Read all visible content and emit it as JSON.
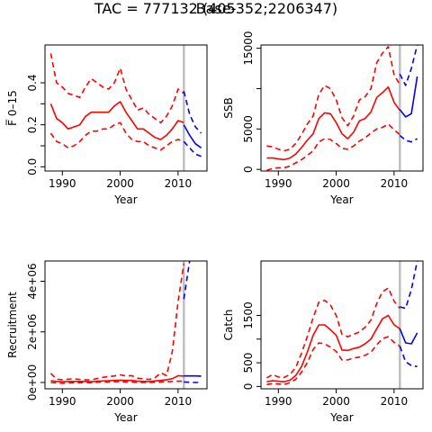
{
  "figure": {
    "title": "Base-",
    "subtitle": "TAC = 777132 (405352;2206347)"
  },
  "chart_data": [
    {
      "type": "line",
      "ylabel": "F̅ 0–15",
      "xlabel": "Year",
      "xlim": [
        1987,
        2015
      ],
      "ylim": [
        -0.02,
        0.58
      ],
      "xticks": [
        1990,
        2000,
        2010
      ],
      "yticks": [
        0.0,
        0.1,
        0.2,
        0.3,
        0.4
      ],
      "yticklabels": [
        "0.0",
        "",
        "0.2",
        "",
        "0.4"
      ],
      "vline": 2011,
      "series": [
        {
          "color": "#ff0000",
          "dash": false,
          "x": [
            1988,
            1989,
            1990,
            1991,
            1992,
            1993,
            1994,
            1995,
            1996,
            1997,
            1998,
            1999,
            2000,
            2001,
            2002,
            2003,
            2004,
            2005,
            2006,
            2007,
            2008,
            2009,
            2010,
            2011
          ],
          "y": [
            0.3,
            0.23,
            0.21,
            0.18,
            0.19,
            0.2,
            0.24,
            0.26,
            0.26,
            0.26,
            0.26,
            0.29,
            0.31,
            0.26,
            0.22,
            0.18,
            0.18,
            0.16,
            0.14,
            0.13,
            0.15,
            0.18,
            0.22,
            0.21
          ]
        },
        {
          "color": "#ff0000",
          "dash": true,
          "x": [
            1988,
            1989,
            1990,
            1991,
            1992,
            1993,
            1994,
            1995,
            1996,
            1997,
            1998,
            1999,
            2000,
            2001,
            2002,
            2003,
            2004,
            2005,
            2006,
            2007,
            2008,
            2009,
            2010,
            2011
          ],
          "y": [
            0.54,
            0.4,
            0.38,
            0.35,
            0.34,
            0.33,
            0.38,
            0.42,
            0.4,
            0.38,
            0.37,
            0.4,
            0.47,
            0.37,
            0.32,
            0.27,
            0.28,
            0.25,
            0.23,
            0.21,
            0.24,
            0.29,
            0.37,
            0.35
          ]
        },
        {
          "color": "#ff0000",
          "dash": true,
          "x": [
            1988,
            1989,
            1990,
            1991,
            1992,
            1993,
            1994,
            1995,
            1996,
            1997,
            1998,
            1999,
            2000,
            2001,
            2002,
            2003,
            2004,
            2005,
            2006,
            2007,
            2008,
            2009,
            2010,
            2011
          ],
          "y": [
            0.16,
            0.12,
            0.11,
            0.09,
            0.1,
            0.12,
            0.15,
            0.17,
            0.17,
            0.18,
            0.18,
            0.2,
            0.21,
            0.16,
            0.13,
            0.12,
            0.12,
            0.1,
            0.09,
            0.08,
            0.1,
            0.12,
            0.13,
            0.12
          ]
        },
        {
          "color": "#0000ff",
          "dash": false,
          "x": [
            2011,
            2012,
            2013,
            2014
          ],
          "y": [
            0.2,
            0.15,
            0.11,
            0.09
          ]
        },
        {
          "color": "#0000ff",
          "dash": true,
          "x": [
            2011,
            2012,
            2013,
            2014
          ],
          "y": [
            0.36,
            0.25,
            0.19,
            0.16
          ]
        },
        {
          "color": "#0000ff",
          "dash": true,
          "x": [
            2011,
            2012,
            2013,
            2014
          ],
          "y": [
            0.12,
            0.09,
            0.06,
            0.05
          ]
        }
      ]
    },
    {
      "type": "line",
      "ylabel": "SSB",
      "xlabel": "Year",
      "xlim": [
        1987,
        2015
      ],
      "ylim": [
        -200,
        15400
      ],
      "xticks": [
        1990,
        2000,
        2010
      ],
      "yticks": [
        0,
        5000,
        10000,
        15000
      ],
      "yticklabels": [
        "0",
        "5000",
        "",
        "15000"
      ],
      "vline": 2011,
      "series": [
        {
          "color": "#ff0000",
          "dash": false,
          "x": [
            1988,
            1989,
            1990,
            1991,
            1992,
            1993,
            1994,
            1995,
            1996,
            1997,
            1998,
            1999,
            2000,
            2001,
            2002,
            2003,
            2004,
            2005,
            2006,
            2007,
            2008,
            2009,
            2010,
            2011
          ],
          "y": [
            1400,
            1400,
            1300,
            1200,
            1400,
            1900,
            2700,
            3600,
            4400,
            6300,
            7000,
            6900,
            5800,
            4400,
            3800,
            4600,
            6000,
            6300,
            7100,
            8900,
            9500,
            10200,
            8300,
            7300
          ]
        },
        {
          "color": "#ff0000",
          "dash": true,
          "x": [
            1988,
            1989,
            1990,
            1991,
            1992,
            1993,
            1994,
            1995,
            1996,
            1997,
            1998,
            1999,
            2000,
            2001,
            2002,
            2003,
            2004,
            2005,
            2006,
            2007,
            2008,
            2009,
            2010,
            2011
          ],
          "y": [
            2900,
            2800,
            2500,
            2300,
            2500,
            3200,
            4300,
            5600,
            6600,
            9300,
            10400,
            10000,
            8600,
            6400,
            5400,
            6600,
            8600,
            9000,
            10000,
            13200,
            14400,
            15200,
            11700,
            10500
          ]
        },
        {
          "color": "#ff0000",
          "dash": true,
          "x": [
            1988,
            1989,
            1990,
            1991,
            1992,
            1993,
            1994,
            1995,
            1996,
            1997,
            1998,
            1999,
            2000,
            2001,
            2002,
            2003,
            2004,
            2005,
            2006,
            2007,
            2008,
            2009,
            2010,
            2011
          ],
          "y": [
            -100,
            100,
            200,
            200,
            400,
            800,
            1200,
            1700,
            2300,
            3400,
            3800,
            3700,
            3200,
            2600,
            2500,
            2900,
            3500,
            3900,
            4500,
            5000,
            5200,
            5600,
            4900,
            4300
          ]
        },
        {
          "color": "#0000ff",
          "dash": false,
          "x": [
            2011,
            2012,
            2013,
            2014
          ],
          "y": [
            7400,
            6500,
            6900,
            11500
          ]
        },
        {
          "color": "#0000ff",
          "dash": true,
          "x": [
            2011,
            2012,
            2013,
            2014
          ],
          "y": [
            11800,
            10400,
            12500,
            15400
          ]
        },
        {
          "color": "#0000ff",
          "dash": true,
          "x": [
            2011,
            2012,
            2013,
            2014
          ],
          "y": [
            4200,
            3600,
            3400,
            3800
          ]
        }
      ]
    },
    {
      "type": "line",
      "ylabel": "Recruitment",
      "xlabel": "Year",
      "xlim": [
        1987,
        2015
      ],
      "ylim": [
        -250000,
        4800000
      ],
      "xticks": [
        1990,
        2000,
        2010
      ],
      "yticks": [
        0,
        2000000,
        4000000
      ],
      "yticklabels": [
        "0e+00",
        "2e+06",
        "4e+06"
      ],
      "vline": 2011,
      "series": [
        {
          "color": "#ff0000",
          "dash": false,
          "x": [
            1988,
            1989,
            1990,
            1991,
            1992,
            1993,
            1994,
            1995,
            1996,
            1997,
            1998,
            1999,
            2000,
            2001,
            2002,
            2003,
            2004,
            2005,
            2006,
            2007,
            2008,
            2009,
            2010,
            2011
          ],
          "y": [
            70000,
            40000,
            30000,
            40000,
            40000,
            40000,
            40000,
            30000,
            50000,
            60000,
            70000,
            80000,
            90000,
            80000,
            80000,
            50000,
            40000,
            40000,
            60000,
            80000,
            110000,
            150000,
            270000,
            250000
          ]
        },
        {
          "color": "#ff0000",
          "dash": true,
          "x": [
            1988,
            1989,
            1990,
            1991,
            1992,
            1993,
            1994,
            1995,
            1996,
            1997,
            1998,
            1999,
            2000,
            2001,
            2002,
            2003,
            2004,
            2005,
            2006,
            2007,
            2008,
            2009,
            2010,
            2011
          ],
          "y": [
            360000,
            130000,
            110000,
            130000,
            140000,
            120000,
            110000,
            100000,
            160000,
            200000,
            230000,
            260000,
            300000,
            260000,
            270000,
            170000,
            140000,
            120000,
            180000,
            380000,
            270000,
            1200000,
            3200000,
            4700000
          ]
        },
        {
          "color": "#ff0000",
          "dash": true,
          "x": [
            1988,
            1989,
            1990,
            1991,
            1992,
            1993,
            1994,
            1995,
            1996,
            1997,
            1998,
            1999,
            2000,
            2001,
            2002,
            2003,
            2004,
            2005,
            2006,
            2007,
            2008,
            2009,
            2010,
            2011
          ],
          "y": [
            0,
            -20000,
            -30000,
            -20000,
            -10000,
            -10000,
            0,
            -10000,
            10000,
            20000,
            20000,
            30000,
            30000,
            20000,
            20000,
            0,
            0,
            0,
            10000,
            20000,
            30000,
            40000,
            50000,
            50000
          ]
        },
        {
          "color": "#0000ff",
          "dash": false,
          "x": [
            2011,
            2012,
            2013,
            2014
          ],
          "y": [
            260000,
            260000,
            260000,
            250000
          ]
        },
        {
          "color": "#0000ff",
          "dash": true,
          "x": [
            2011,
            2012
          ],
          "y": [
            3300000,
            4800000
          ]
        },
        {
          "color": "#0000ff",
          "dash": true,
          "x": [
            2011,
            2012,
            2013,
            2014
          ],
          "y": [
            20000,
            10000,
            0,
            0
          ]
        }
      ]
    },
    {
      "type": "line",
      "ylabel": "Catch",
      "xlabel": "Year",
      "xlim": [
        1987,
        2015
      ],
      "ylim": [
        -50,
        2650
      ],
      "xticks": [
        1990,
        2000,
        2010
      ],
      "yticks": [
        0,
        500,
        1000,
        1500
      ],
      "yticklabels": [
        "0",
        "500",
        "",
        "1500"
      ],
      "vline": 2011,
      "series": [
        {
          "color": "#ff0000",
          "dash": false,
          "x": [
            1988,
            1989,
            1990,
            1991,
            1992,
            1993,
            1994,
            1995,
            1996,
            1997,
            1998,
            1999,
            2000,
            2001,
            2002,
            2003,
            2004,
            2005,
            2006,
            2007,
            2008,
            2009,
            2010,
            2011
          ],
          "y": [
            100,
            120,
            110,
            100,
            130,
            230,
            420,
            720,
            1080,
            1300,
            1300,
            1200,
            1080,
            770,
            760,
            800,
            830,
            900,
            1000,
            1220,
            1430,
            1500,
            1300,
            1220
          ]
        },
        {
          "color": "#ff0000",
          "dash": true,
          "x": [
            1988,
            1989,
            1990,
            1991,
            1992,
            1993,
            1994,
            1995,
            1996,
            1997,
            1998,
            1999,
            2000,
            2001,
            2002,
            2003,
            2004,
            2005,
            2006,
            2007,
            2008,
            2009,
            2010,
            2011
          ],
          "y": [
            180,
            250,
            200,
            190,
            250,
            400,
            700,
            1050,
            1450,
            1780,
            1820,
            1720,
            1500,
            1100,
            1050,
            1100,
            1150,
            1250,
            1400,
            1750,
            2000,
            2080,
            1800,
            1650
          ]
        },
        {
          "color": "#ff0000",
          "dash": true,
          "x": [
            1988,
            1989,
            1990,
            1991,
            1992,
            1993,
            1994,
            1995,
            1996,
            1997,
            1998,
            1999,
            2000,
            2001,
            2002,
            2003,
            2004,
            2005,
            2006,
            2007,
            2008,
            2009,
            2010,
            2011
          ],
          "y": [
            40,
            60,
            50,
            40,
            80,
            150,
            300,
            500,
            780,
            920,
            900,
            830,
            740,
            560,
            560,
            600,
            620,
            660,
            720,
            880,
            1010,
            1050,
            930,
            850
          ]
        },
        {
          "color": "#0000ff",
          "dash": false,
          "x": [
            2011,
            2012,
            2013,
            2014
          ],
          "y": [
            1220,
            920,
            900,
            1130
          ]
        },
        {
          "color": "#0000ff",
          "dash": true,
          "x": [
            2011,
            2012,
            2013,
            2014
          ],
          "y": [
            1680,
            1650,
            2050,
            2650
          ]
        },
        {
          "color": "#0000ff",
          "dash": true,
          "x": [
            2011,
            2012,
            2013,
            2014
          ],
          "y": [
            850,
            520,
            440,
            420
          ]
        }
      ]
    }
  ]
}
